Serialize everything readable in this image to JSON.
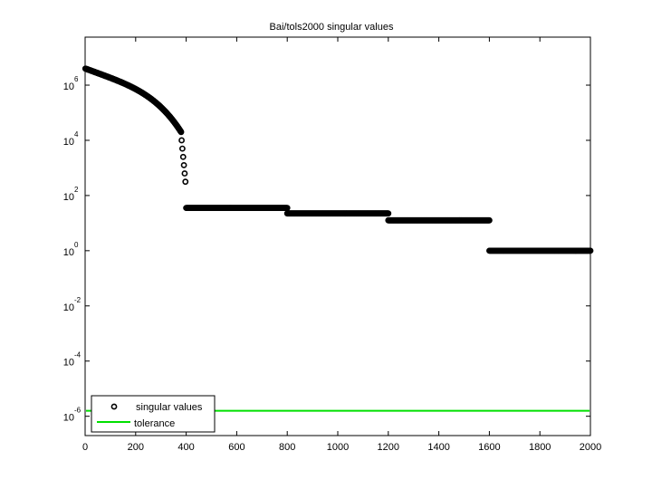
{
  "chart_data": {
    "type": "scatter",
    "title": "Bai/tols2000 singular values",
    "xlabel": "",
    "ylabel": "",
    "xlim": [
      0,
      2000
    ],
    "ylim_log10": [
      -6.7,
      7.74
    ],
    "yscale": "log",
    "grid": false,
    "legend_position": "lower left",
    "x_ticks": [
      0,
      200,
      400,
      600,
      800,
      1000,
      1200,
      1400,
      1600,
      1800,
      2000
    ],
    "x_tick_labels": [
      "0",
      "200",
      "400",
      "600",
      "800",
      "1000",
      "1200",
      "1400",
      "1600",
      "1800",
      "2000"
    ],
    "y_ticks_log10": [
      6,
      4,
      2,
      0,
      -2,
      -4,
      -6
    ],
    "y_tick_labels": [
      {
        "base": "10",
        "exp": "6"
      },
      {
        "base": "10",
        "exp": "4"
      },
      {
        "base": "10",
        "exp": "2"
      },
      {
        "base": "10",
        "exp": "0"
      },
      {
        "base": "10",
        "exp": "-2"
      },
      {
        "base": "10",
        "exp": "-4"
      },
      {
        "base": "10",
        "exp": "-6"
      }
    ],
    "series": [
      {
        "name": "singular values",
        "marker": "o",
        "color": "#000000",
        "segments": [
          {
            "x_range": [
              1,
              380
            ],
            "log10_start": 6.6,
            "log10_end": 4.3,
            "shape": "concave-decreasing"
          },
          {
            "x": [
              382,
              385,
              388,
              391,
              394,
              397
            ],
            "log10": [
              4.0,
              3.7,
              3.4,
              3.1,
              2.8,
              2.5
            ]
          },
          {
            "x_range": [
              400,
              800
            ],
            "log10_value": 1.55
          },
          {
            "x_range": [
              800,
              1200
            ],
            "log10_value": 1.35
          },
          {
            "x_range": [
              1200,
              1600
            ],
            "log10_value": 1.1
          },
          {
            "x_range": [
              1600,
              2000
            ],
            "log10_value": 0.0
          }
        ]
      },
      {
        "name": "tolerance",
        "marker": "line",
        "color": "#00e000",
        "log10_value": -5.8
      }
    ]
  },
  "legend": {
    "items": [
      {
        "label": "singular values"
      },
      {
        "label": "tolerance"
      }
    ]
  }
}
